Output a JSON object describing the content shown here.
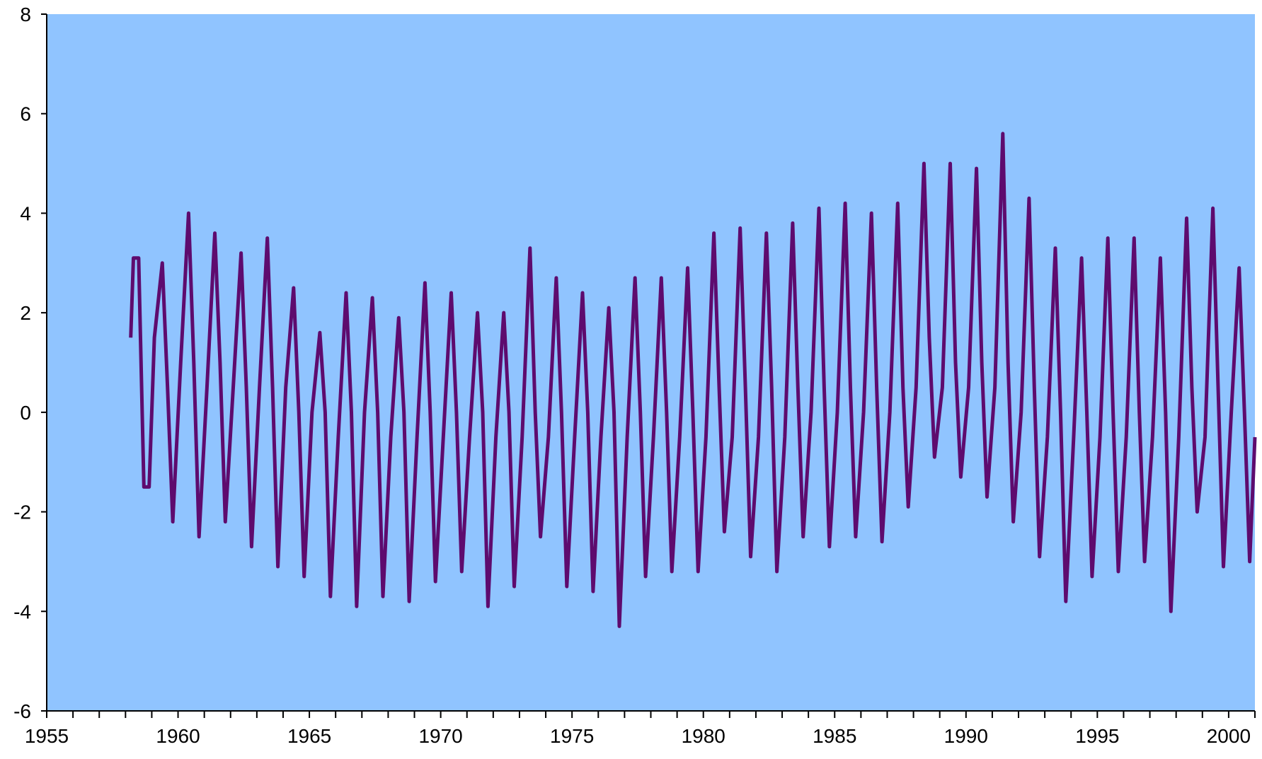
{
  "colors": {
    "plot_background": "#90C4FF",
    "series_line": "#5E0B6E",
    "axis": "#000000"
  },
  "chart_data": {
    "type": "line",
    "title": "",
    "xlabel": "",
    "ylabel": "",
    "xlim": [
      1955,
      2001
    ],
    "ylim": [
      -6,
      8
    ],
    "grid": false,
    "legend": "none",
    "x_ticks": [
      1955,
      1960,
      1965,
      1970,
      1975,
      1980,
      1985,
      1990,
      1995,
      2000
    ],
    "x_tick_labels": [
      "1955",
      "1960",
      "1965",
      "1970",
      "1975",
      "1980",
      "1985",
      "1990",
      "1995",
      "2000"
    ],
    "y_ticks": [
      -6,
      -4,
      -2,
      0,
      2,
      4,
      6,
      8
    ],
    "y_tick_labels": [
      "-6",
      "-4",
      "-2",
      "0",
      "2",
      "4",
      "6",
      "8"
    ],
    "series": [
      {
        "x": [
          1958.2,
          1958.3,
          1958.5,
          1958.7,
          1958.9,
          1959.1,
          1959.4,
          1959.6,
          1959.8,
          1960.1,
          1960.4,
          1960.6,
          1960.8,
          1961.1,
          1961.4,
          1961.6,
          1961.8,
          1962.1,
          1962.4,
          1962.6,
          1962.8,
          1963.1,
          1963.4,
          1963.6,
          1963.8,
          1964.1,
          1964.4,
          1964.6,
          1964.8,
          1965.1,
          1965.4,
          1965.6,
          1965.8,
          1966.1,
          1966.4,
          1966.6,
          1966.8,
          1967.1,
          1967.4,
          1967.6,
          1967.8,
          1968.1,
          1968.4,
          1968.6,
          1968.8,
          1969.1,
          1969.4,
          1969.6,
          1969.8,
          1970.1,
          1970.4,
          1970.6,
          1970.8,
          1971.1,
          1971.4,
          1971.6,
          1971.8,
          1972.1,
          1972.4,
          1972.6,
          1972.8,
          1973.1,
          1973.4,
          1973.6,
          1973.8,
          1974.1,
          1974.4,
          1974.6,
          1974.8,
          1975.1,
          1975.4,
          1975.6,
          1975.8,
          1976.1,
          1976.4,
          1976.6,
          1976.8,
          1977.1,
          1977.4,
          1977.6,
          1977.8,
          1978.1,
          1978.4,
          1978.6,
          1978.8,
          1979.1,
          1979.4,
          1979.6,
          1979.8,
          1980.1,
          1980.4,
          1980.6,
          1980.8,
          1981.1,
          1981.4,
          1981.6,
          1981.8,
          1982.1,
          1982.4,
          1982.6,
          1982.8,
          1983.1,
          1983.4,
          1983.6,
          1983.8,
          1984.1,
          1984.4,
          1984.6,
          1984.8,
          1985.1,
          1985.4,
          1985.6,
          1985.8,
          1986.1,
          1986.4,
          1986.6,
          1986.8,
          1987.1,
          1987.4,
          1987.6,
          1987.8,
          1988.1,
          1988.4,
          1988.6,
          1988.8,
          1989.1,
          1989.4,
          1989.6,
          1989.8,
          1990.1,
          1990.4,
          1990.6,
          1990.8,
          1991.1,
          1991.4,
          1991.6,
          1991.8,
          1992.1,
          1992.4,
          1992.6,
          1992.8,
          1993.1,
          1993.4,
          1993.6,
          1993.8,
          1994.1,
          1994.4,
          1994.6,
          1994.8,
          1995.1,
          1995.4,
          1995.6,
          1995.8,
          1996.1,
          1996.4,
          1996.6,
          1996.8,
          1997.1,
          1997.4,
          1997.6,
          1997.8,
          1998.1,
          1998.4,
          1998.6,
          1998.8,
          1999.1,
          1999.4,
          1999.6,
          1999.8,
          2000.1,
          2000.4,
          2000.6,
          2000.8,
          2001.0
        ],
        "values": [
          1.5,
          3.1,
          3.1,
          -1.5,
          -1.5,
          1.5,
          3.0,
          0.5,
          -2.2,
          1.0,
          4.0,
          1.0,
          -2.5,
          0.5,
          3.6,
          1.0,
          -2.2,
          0.5,
          3.2,
          0.5,
          -2.7,
          0.5,
          3.5,
          0.5,
          -3.1,
          0.5,
          2.5,
          0.0,
          -3.3,
          0.0,
          1.6,
          0.0,
          -3.7,
          -0.5,
          2.4,
          0.0,
          -3.9,
          0.0,
          2.3,
          0.0,
          -3.7,
          -0.5,
          1.9,
          0.0,
          -3.8,
          -0.5,
          2.6,
          0.0,
          -3.4,
          -0.5,
          2.4,
          0.0,
          -3.2,
          -0.5,
          2.0,
          0.0,
          -3.9,
          -0.5,
          2.0,
          0.0,
          -3.5,
          -0.5,
          3.3,
          0.0,
          -2.5,
          -0.5,
          2.7,
          0.0,
          -3.5,
          -0.5,
          2.4,
          0.0,
          -3.6,
          -0.5,
          2.1,
          0.0,
          -4.3,
          -0.5,
          2.7,
          0.0,
          -3.3,
          -0.5,
          2.7,
          0.0,
          -3.2,
          -0.5,
          2.9,
          0.0,
          -3.2,
          -0.5,
          3.6,
          0.5,
          -2.4,
          -0.5,
          3.7,
          0.5,
          -2.9,
          -0.5,
          3.6,
          0.5,
          -3.2,
          -0.5,
          3.8,
          0.5,
          -2.5,
          0.0,
          4.1,
          0.5,
          -2.7,
          0.0,
          4.2,
          0.5,
          -2.5,
          0.0,
          4.0,
          0.5,
          -2.6,
          0.0,
          4.2,
          0.5,
          -1.9,
          0.5,
          5.0,
          1.5,
          -0.9,
          0.5,
          5.0,
          1.0,
          -1.3,
          0.5,
          4.9,
          1.0,
          -1.7,
          0.5,
          5.6,
          1.0,
          -2.2,
          0.0,
          4.3,
          0.5,
          -2.9,
          -0.5,
          3.3,
          0.0,
          -3.8,
          -0.5,
          3.1,
          0.0,
          -3.3,
          -0.5,
          3.5,
          0.0,
          -3.2,
          -0.5,
          3.5,
          0.0,
          -3.0,
          -0.5,
          3.1,
          0.0,
          -4.0,
          -0.5,
          3.9,
          0.5,
          -2.0,
          -0.5,
          4.1,
          0.5,
          -3.1,
          0.0,
          2.9,
          0.0,
          -3.0,
          -0.5
        ]
      }
    ]
  }
}
